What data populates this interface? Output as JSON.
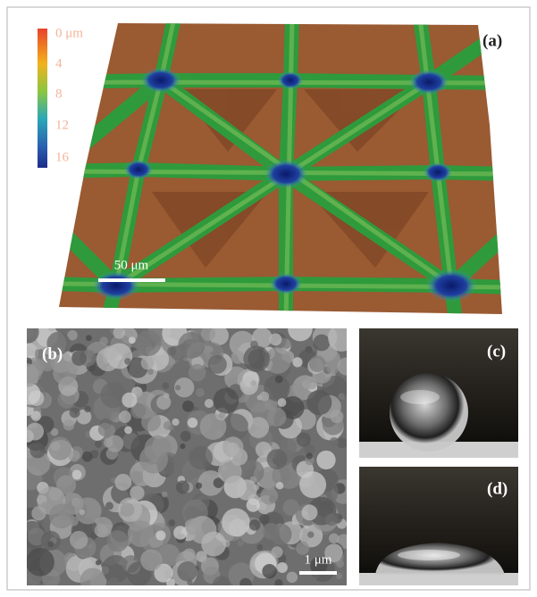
{
  "panel_a": {
    "label": "(a)",
    "colorbar_labels": [
      "0 μm",
      "4",
      "8",
      "12",
      "16"
    ],
    "scale_bar": "50 μm"
  },
  "panel_b": {
    "label": "(b)",
    "scale_bar": "1 μm"
  },
  "panel_c": {
    "label": "(c)"
  },
  "panel_d": {
    "label": "(d)"
  }
}
